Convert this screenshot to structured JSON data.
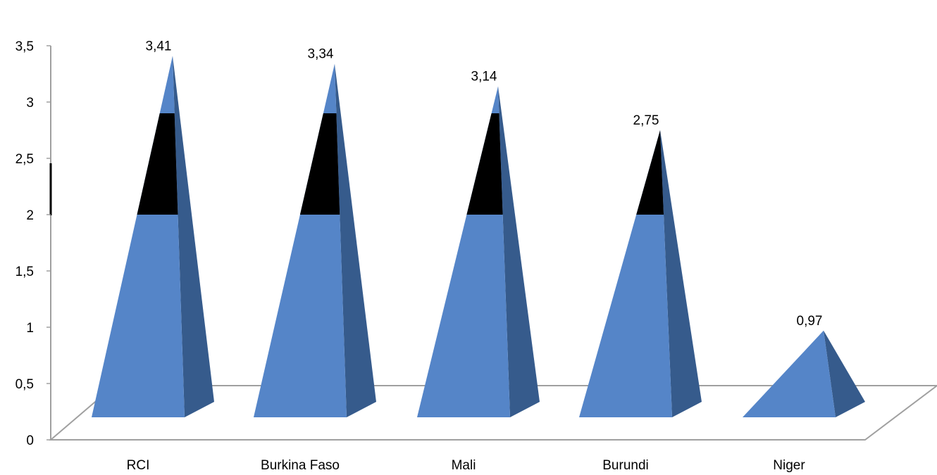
{
  "chart_data": {
    "type": "bar",
    "shape": "pyramid-3d",
    "categories": [
      "RCI",
      "Burkina Faso",
      "Mali",
      "Burundi",
      "Niger"
    ],
    "values": [
      3.41,
      3.34,
      3.14,
      2.75,
      0.97
    ],
    "value_labels": [
      "3,41",
      "3,34",
      "3,14",
      "2,75",
      "0,97"
    ],
    "ylim": [
      0,
      3.5
    ],
    "y_ticks": [
      0,
      0.5,
      1,
      1.5,
      2,
      2.5,
      3,
      3.5
    ],
    "y_tick_labels": [
      "0",
      "0,5",
      "1",
      "1,5",
      "2",
      "2,5",
      "3",
      "3,5"
    ],
    "highlight_band": [
      2,
      2.9
    ],
    "grid": false,
    "legend": "none",
    "colors": {
      "front": "#5585c8",
      "side": "#365b8c",
      "band": "#000000",
      "floor": "#a0a0a0"
    }
  }
}
